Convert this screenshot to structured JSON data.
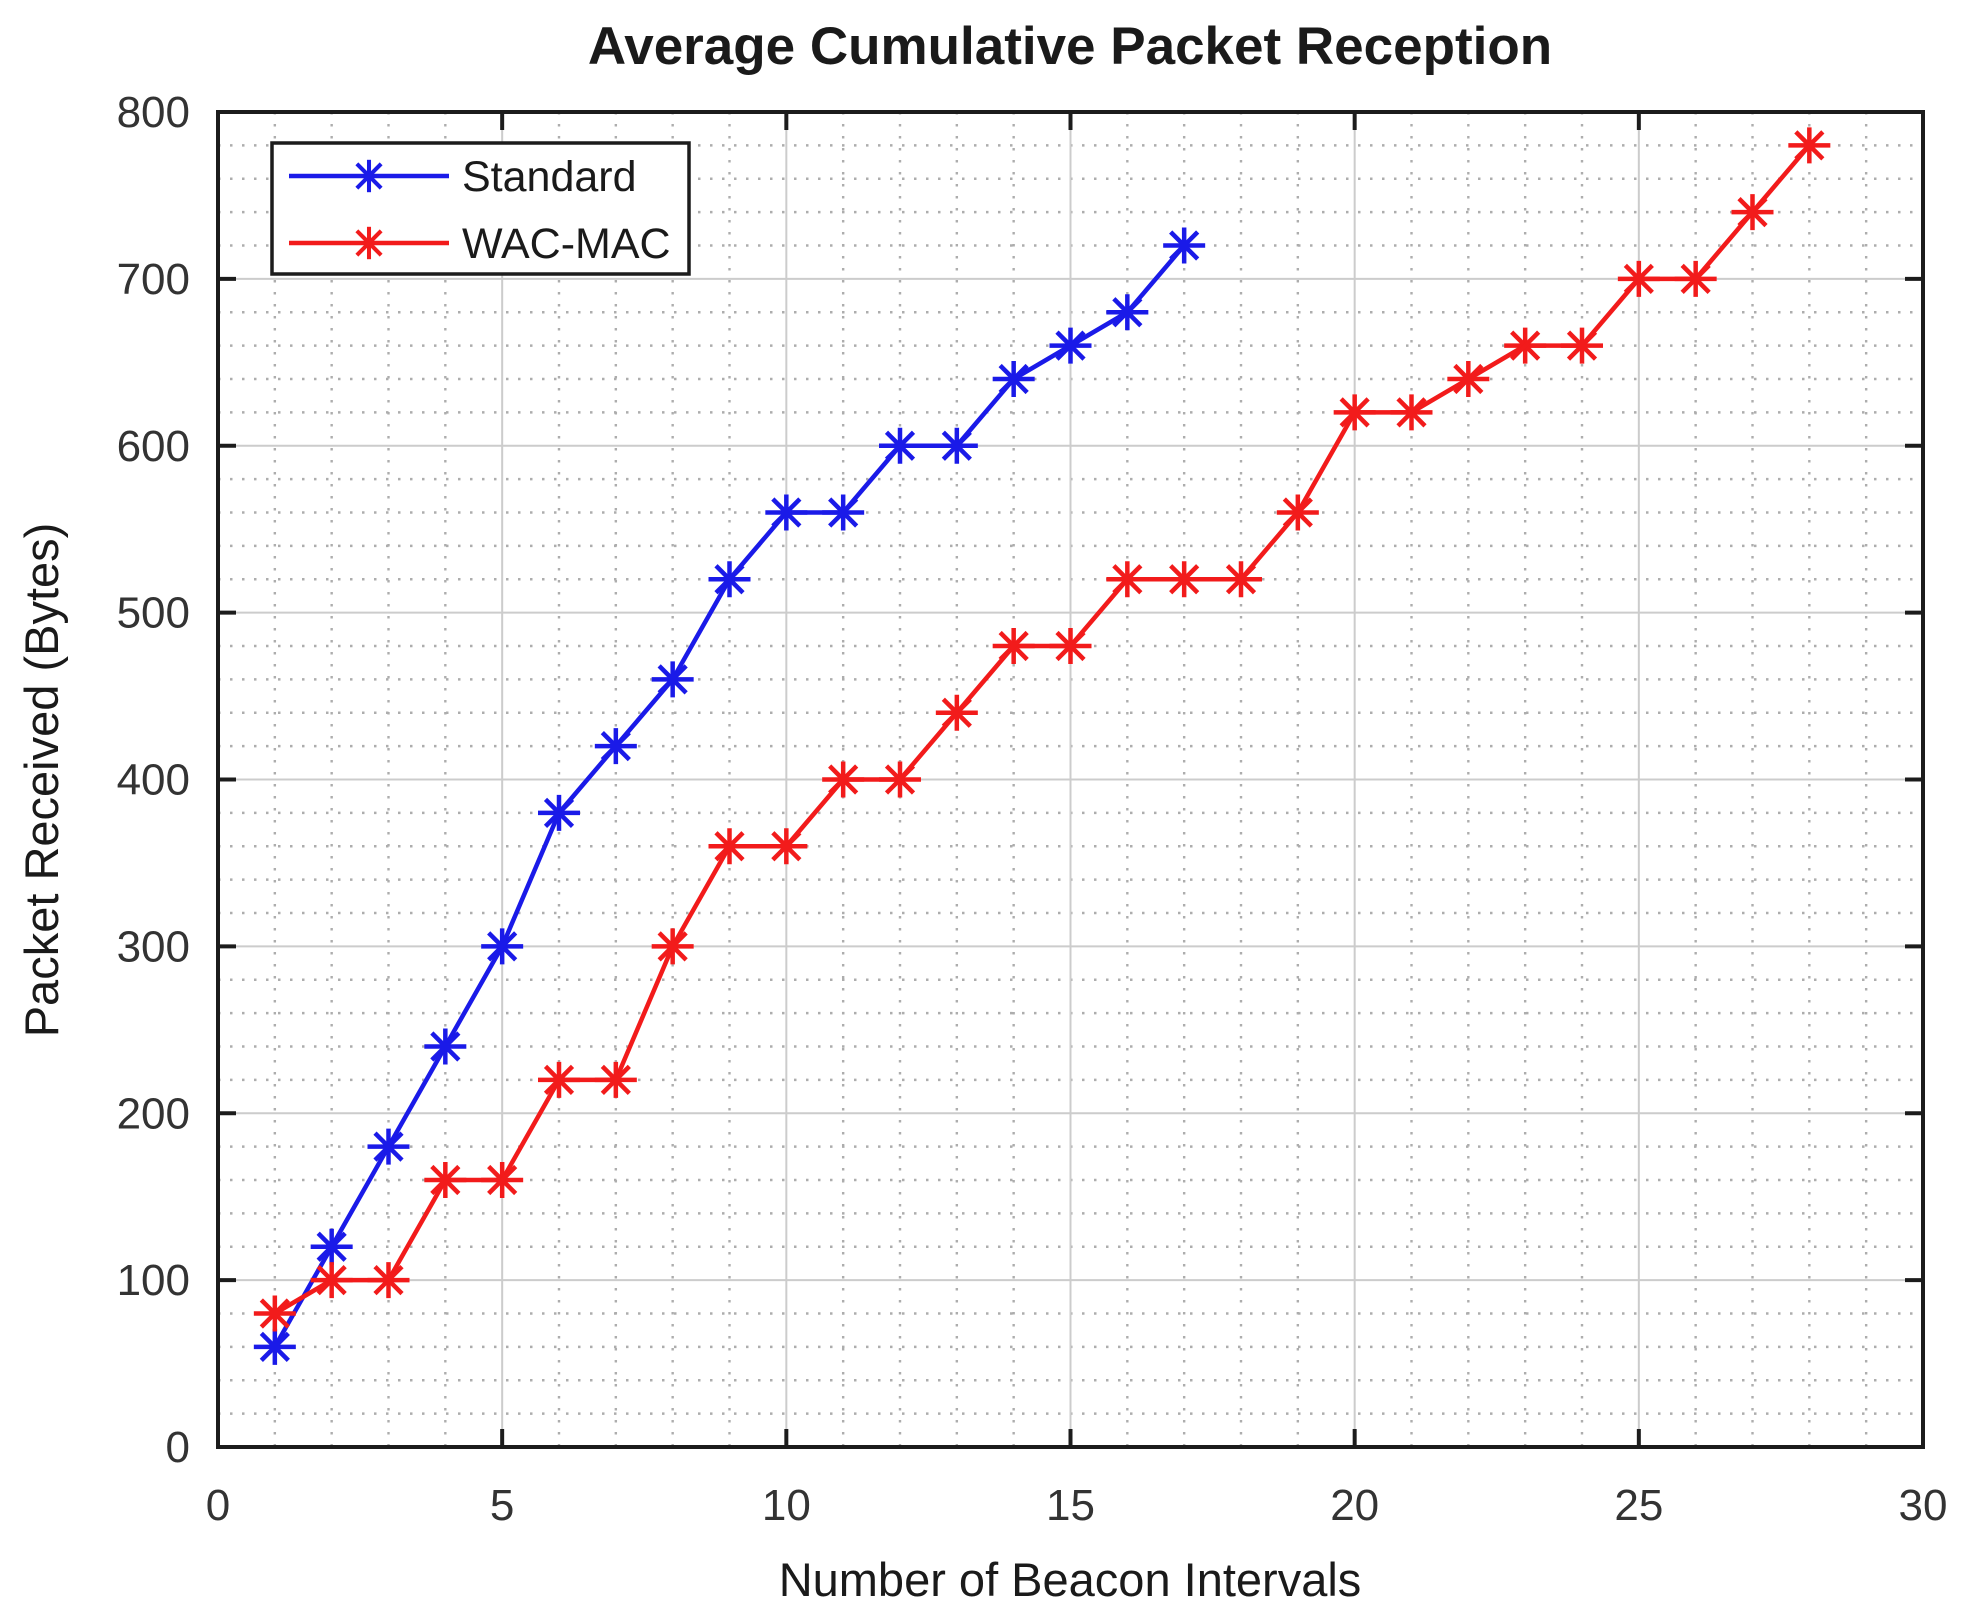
{
  "chart_data": {
    "type": "line",
    "title": "Average Cumulative Packet Reception",
    "xlabel": "Number of Beacon Intervals",
    "ylabel": "Packet Received (Bytes)",
    "xlim": [
      0,
      30
    ],
    "ylim": [
      0,
      800
    ],
    "x_ticks": [
      0,
      5,
      10,
      15,
      20,
      25,
      30
    ],
    "y_ticks": [
      0,
      100,
      200,
      300,
      400,
      500,
      600,
      700,
      800
    ],
    "grid": {
      "major": true,
      "minor": true,
      "minor_x_step": 1,
      "minor_y_step": 20,
      "major_color": "#cccccc",
      "minor_color": "#adadad"
    },
    "axis_color": "#1c1c1c",
    "tick_label_color": "#333333",
    "text_color": "#1a1a1a",
    "legend": {
      "position": "top-left",
      "border_color": "#1c1c1c",
      "background": "#ffffff"
    },
    "series": [
      {
        "name": "Standard",
        "color": "#1a1ae8",
        "marker": "asterisk",
        "x": [
          1,
          2,
          3,
          4,
          5,
          6,
          7,
          8,
          9,
          10,
          11,
          12,
          13,
          14,
          15,
          16,
          17
        ],
        "values": [
          60,
          120,
          180,
          240,
          300,
          380,
          420,
          460,
          520,
          560,
          560,
          600,
          600,
          640,
          660,
          680,
          720
        ]
      },
      {
        "name": "WAC-MAC",
        "color": "#f21b1b",
        "marker": "asterisk",
        "x": [
          1,
          2,
          3,
          4,
          5,
          6,
          7,
          8,
          9,
          10,
          11,
          12,
          13,
          14,
          15,
          16,
          17,
          18,
          19,
          20,
          21,
          22,
          23,
          24,
          25,
          26,
          27,
          28
        ],
        "values": [
          80,
          100,
          100,
          160,
          160,
          220,
          220,
          300,
          360,
          360,
          400,
          400,
          440,
          480,
          480,
          520,
          520,
          520,
          560,
          620,
          620,
          640,
          660,
          660,
          700,
          700,
          740,
          780
        ]
      }
    ]
  }
}
